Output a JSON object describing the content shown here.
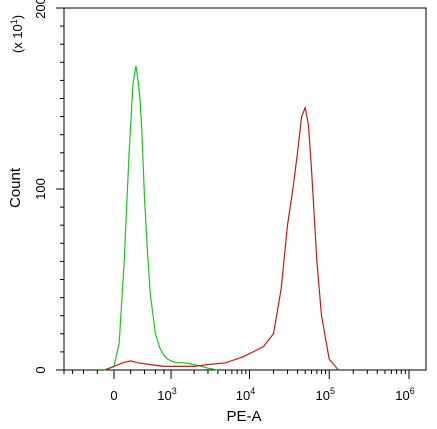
{
  "chart_data": {
    "type": "line",
    "title": "",
    "xlabel": "PE-A",
    "ylabel": "Count",
    "y_multiplier_label": "(x 10^1)",
    "x_scale": "biexponential",
    "x_ticks": [
      {
        "value": 0,
        "label": "0"
      },
      {
        "value": 1000,
        "label": "10",
        "exp": "3"
      },
      {
        "value": 10000,
        "label": "10",
        "exp": "4"
      },
      {
        "value": 100000,
        "label": "10",
        "exp": "5"
      },
      {
        "value": 1000000,
        "label": "10",
        "exp": "6"
      }
    ],
    "y_ticks": [
      {
        "value": 0,
        "label": "0"
      },
      {
        "value": 100,
        "label": "100"
      },
      {
        "value": 200,
        "label": "200"
      }
    ],
    "ylim": [
      0,
      200
    ],
    "grid": false,
    "series": [
      {
        "color": "#18c818",
        "x": [
          -120,
          0,
          60,
          120,
          180,
          230,
          270,
          300,
          330,
          360,
          400,
          450,
          500,
          600,
          700,
          800,
          900,
          1000,
          1200,
          1500,
          2000,
          2500,
          3000,
          4000
        ],
        "values": [
          0,
          2,
          15,
          60,
          120,
          158,
          168,
          160,
          150,
          130,
          95,
          65,
          42,
          20,
          12,
          8,
          6,
          5,
          4,
          4,
          3,
          2,
          1,
          0
        ]
      },
      {
        "color": "#c81818",
        "x": [
          -100,
          0,
          100,
          200,
          300,
          500,
          800,
          1200,
          2000,
          3000,
          5000,
          8000,
          10000,
          15000,
          20000,
          25000,
          30000,
          35000,
          40000,
          45000,
          50000,
          55000,
          60000,
          70000,
          80000,
          100000,
          130000
        ],
        "values": [
          0,
          2,
          4,
          5,
          4,
          3,
          2,
          2,
          2,
          3,
          4,
          7,
          9,
          13,
          20,
          45,
          80,
          100,
          120,
          140,
          145,
          135,
          110,
          60,
          30,
          6,
          0
        ]
      }
    ]
  }
}
